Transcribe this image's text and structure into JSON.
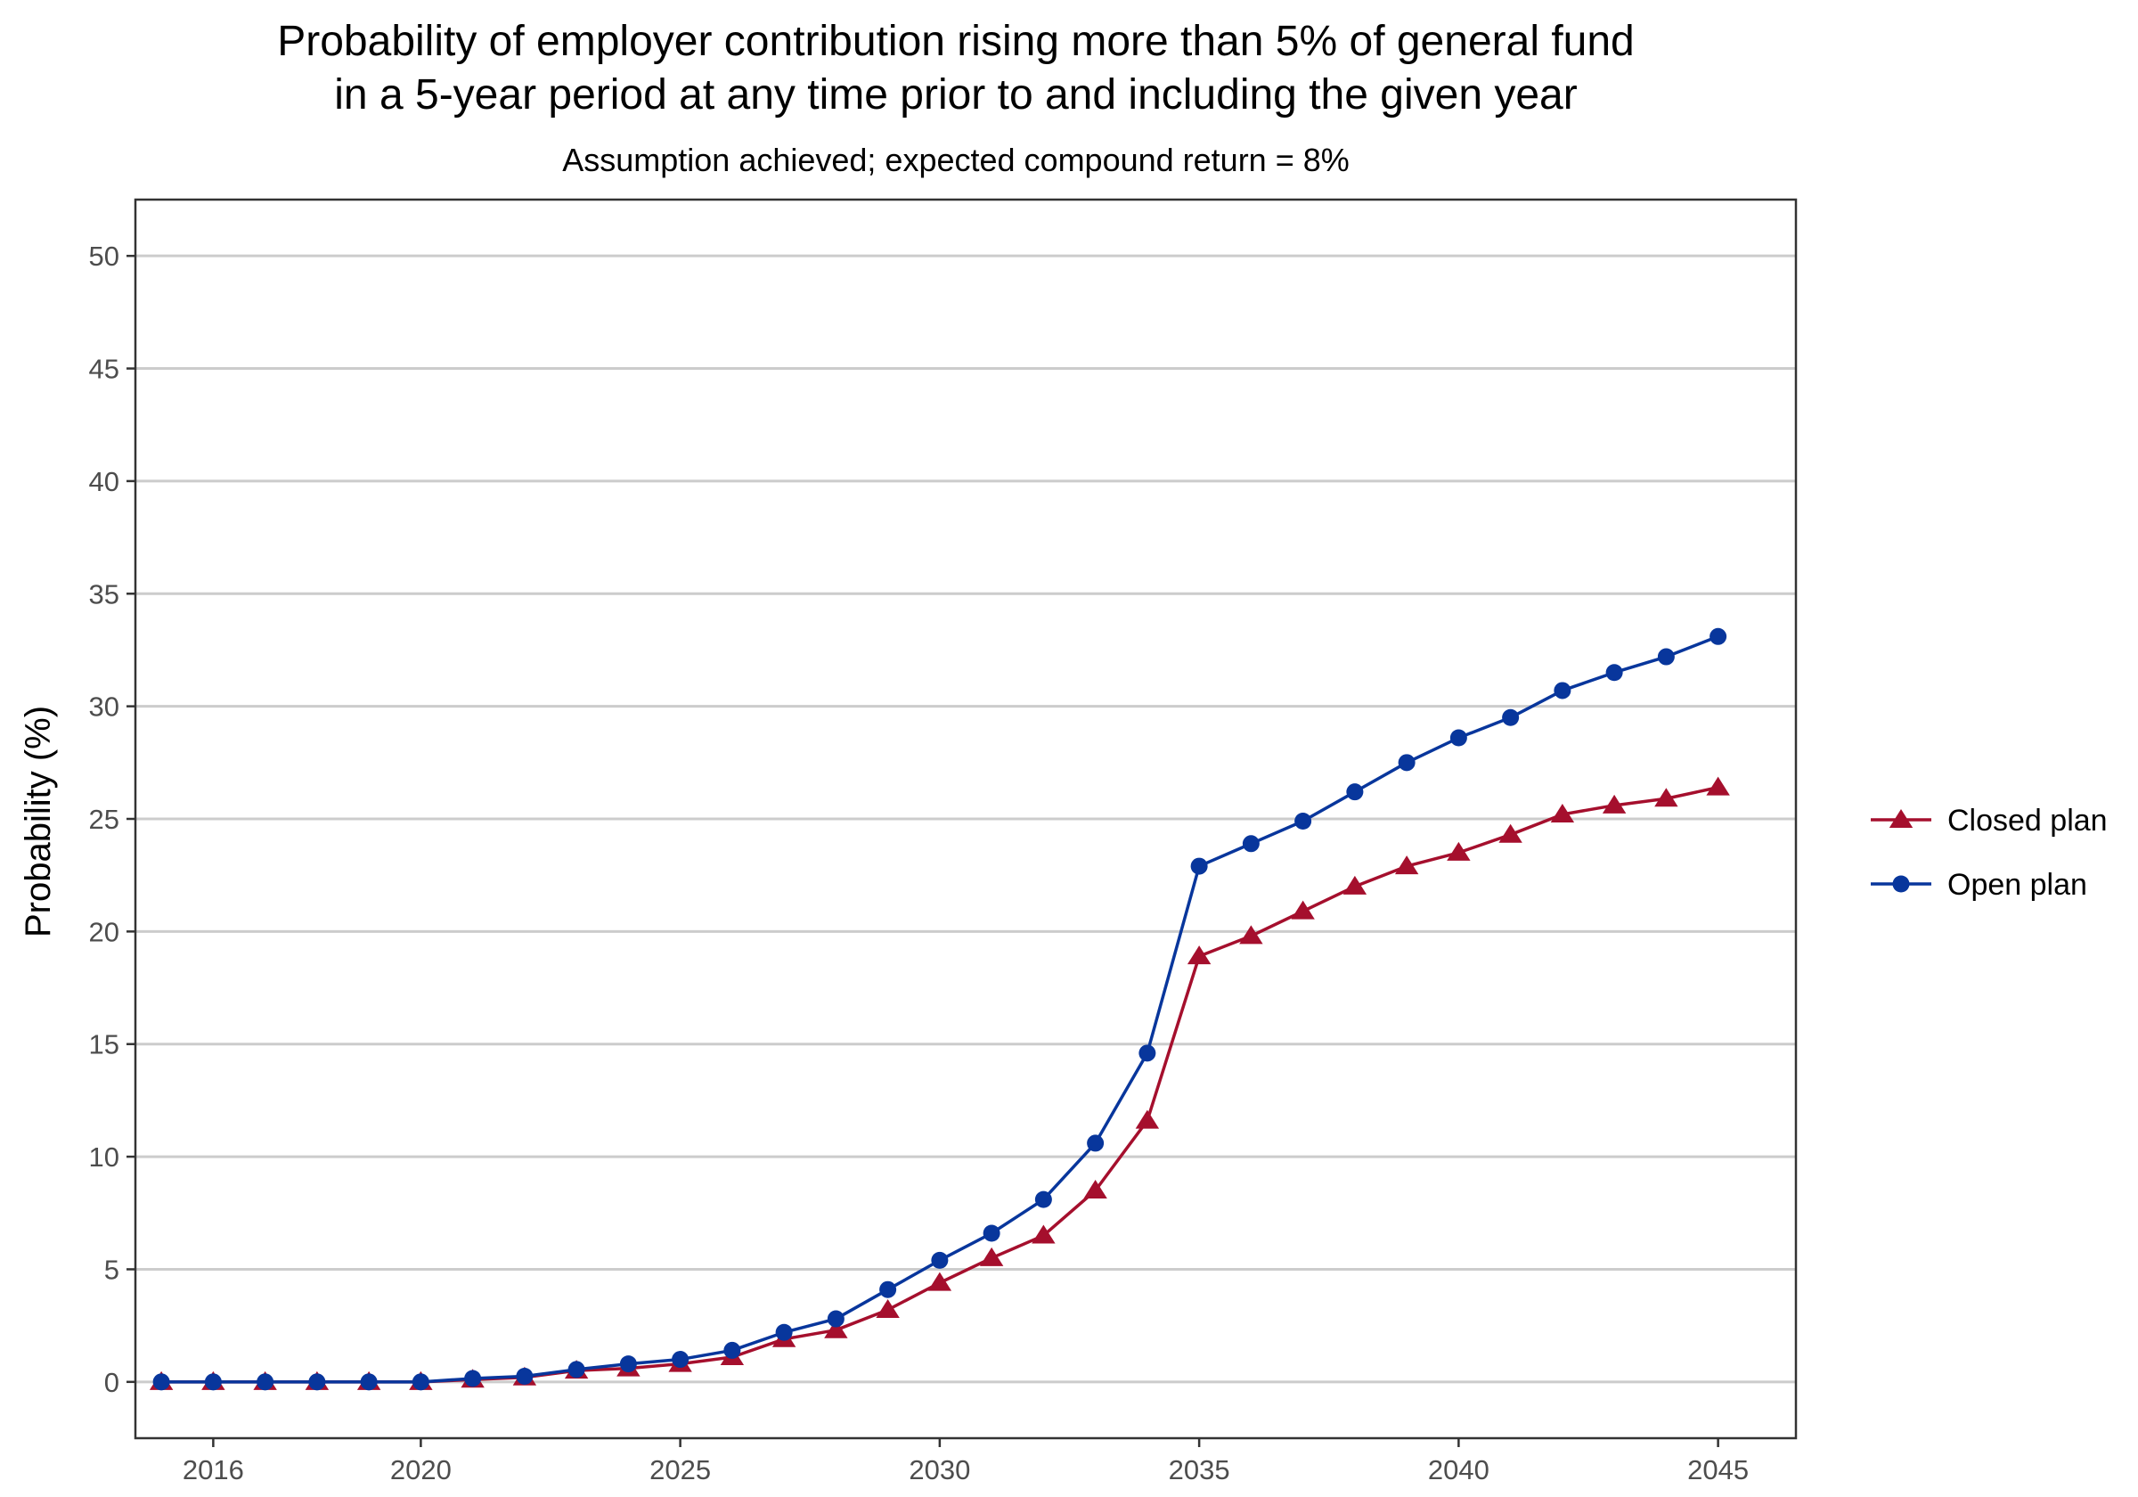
{
  "chart_data": {
    "type": "line",
    "title_lines": [
      "Probability of employer contribution rising more than 5% of general fund",
      "in a 5-year period at any time prior to and including the given year"
    ],
    "subtitle": "Assumption achieved; expected compound return = 8%",
    "ylabel": "Probability (%)",
    "xlabel": "",
    "xlim": [
      2014.5,
      2046.5
    ],
    "ylim": [
      -2.5,
      52.5
    ],
    "x_ticks": [
      2016,
      2020,
      2025,
      2030,
      2035,
      2040,
      2045
    ],
    "y_ticks": [
      0,
      5,
      10,
      15,
      20,
      25,
      30,
      35,
      40,
      45,
      50
    ],
    "grid": "horizontal",
    "legend_position": "right",
    "x": [
      2015,
      2016,
      2017,
      2018,
      2019,
      2020,
      2021,
      2022,
      2023,
      2024,
      2025,
      2026,
      2027,
      2028,
      2029,
      2030,
      2031,
      2032,
      2033,
      2034,
      2035,
      2036,
      2037,
      2038,
      2039,
      2040,
      2041,
      2042,
      2043,
      2044,
      2045
    ],
    "series": [
      {
        "name": "Closed plan",
        "color": "#a50f2d",
        "marker": "triangle",
        "values": [
          0,
          0,
          0,
          0,
          0,
          0,
          0.1,
          0.2,
          0.5,
          0.6,
          0.8,
          1.1,
          1.9,
          2.3,
          3.2,
          4.4,
          5.5,
          6.5,
          8.5,
          11.6,
          18.9,
          19.8,
          20.9,
          22.0,
          22.9,
          23.5,
          24.3,
          25.2,
          25.6,
          25.9,
          26.4
        ]
      },
      {
        "name": "Open plan",
        "color": "#08369c",
        "marker": "circle",
        "values": [
          0,
          0,
          0,
          0,
          0,
          0,
          0.15,
          0.25,
          0.55,
          0.8,
          1.0,
          1.4,
          2.2,
          2.8,
          4.1,
          5.4,
          6.6,
          8.1,
          10.6,
          14.6,
          22.9,
          23.9,
          24.9,
          26.2,
          27.5,
          28.6,
          29.5,
          30.7,
          31.5,
          32.2,
          33.1
        ]
      }
    ]
  }
}
